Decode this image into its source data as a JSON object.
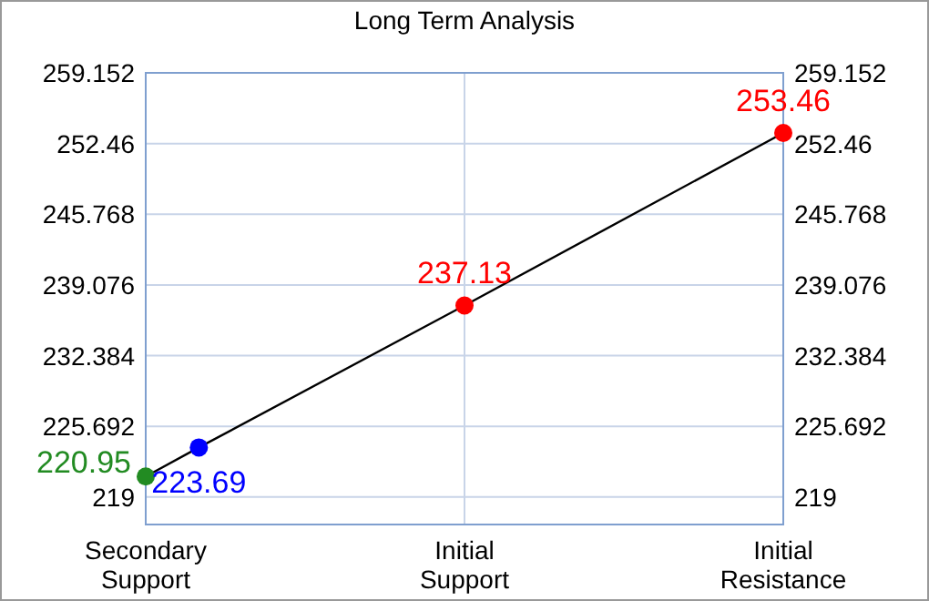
{
  "chart_data": {
    "type": "line",
    "title": "Long Term Analysis",
    "categories": [
      "Secondary Support",
      null,
      null,
      null,
      null,
      null,
      "Initial Support",
      null,
      null,
      null,
      null,
      null,
      "Initial Resistance"
    ],
    "ylim": [
      216.4,
      259.152
    ],
    "yticks": [
      219,
      225.692,
      232.384,
      239.076,
      245.768,
      252.46,
      259.152
    ],
    "y2lim": [
      216.4,
      259.152
    ],
    "y2ticks": [
      219,
      225.692,
      232.384,
      239.076,
      245.768,
      252.46,
      259.152
    ],
    "grid": true,
    "marker": "circle",
    "data_labels": true,
    "series": [
      {
        "color": "#000000",
        "values": [
          220.95,
          223.69,
          null,
          null,
          null,
          null,
          237.13,
          null,
          null,
          null,
          null,
          null,
          253.46
        ],
        "colors": [
          "#228b22",
          "#0000ff",
          null,
          null,
          null,
          null,
          "#ff0000",
          null,
          null,
          null,
          null,
          null,
          "#ff0000"
        ]
      }
    ]
  }
}
